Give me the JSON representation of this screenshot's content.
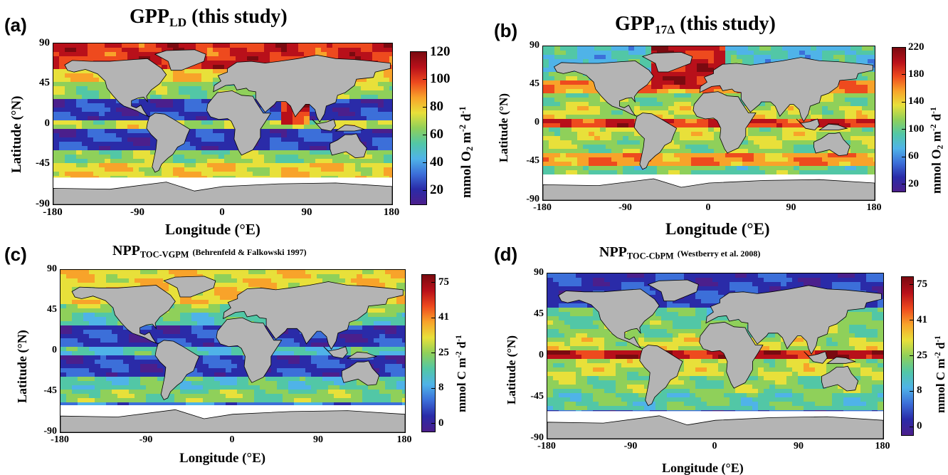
{
  "panels": [
    {
      "id": "a",
      "letter": "(a)",
      "title_main": "GPP",
      "title_sub": "LD",
      "title_note": "(this study)",
      "ylabel": "Latitude (°N)",
      "xlabel": "Longitude  (°E)",
      "lat_ticks": [
        "90",
        "45",
        "0",
        "-45",
        "-90"
      ],
      "lon_ticks": [
        "-180",
        "-90",
        "0",
        "90",
        "180"
      ],
      "colorbar": {
        "label_pre": "mmol O",
        "label_sub": "2",
        "label_mid": " m",
        "label_sup1": "-2",
        "label_post": " d",
        "label_sup2": "-1",
        "ticks": [
          "120",
          "100",
          "80",
          "60",
          "40",
          "20"
        ],
        "range": [
          10,
          120
        ]
      }
    },
    {
      "id": "b",
      "letter": "(b)",
      "title_main": "GPP",
      "title_sub": "17Δ",
      "title_note": "(this study)",
      "ylabel": "Latitude (°N)",
      "xlabel": "Longitude  (°E)",
      "lat_ticks": [
        "90",
        "45",
        "0",
        "-45",
        "-90"
      ],
      "lon_ticks": [
        "-180",
        "-90",
        "0",
        "90",
        "180"
      ],
      "colorbar": {
        "label_pre": "mmol O",
        "label_sub": "2",
        "label_mid": " m",
        "label_sup1": "-2",
        "label_post": " d",
        "label_sup2": "-1",
        "ticks": [
          "220",
          "180",
          "140",
          "100",
          "60",
          "20"
        ],
        "range": [
          10,
          220
        ]
      }
    },
    {
      "id": "c",
      "letter": "(c)",
      "title_main": "NPP",
      "title_sub": "TOC-VGPM",
      "title_note": "(Behrenfeld & Falkowski 1997)",
      "ylabel": "Latitude (°N)",
      "xlabel": "Longitude  (°E)",
      "lat_ticks": [
        "90",
        "45",
        "0",
        "-45",
        "-90"
      ],
      "lon_ticks": [
        "-180",
        "-90",
        "0",
        "90",
        "180"
      ],
      "colorbar": {
        "label_pre": "mmol C m",
        "label_sub": "",
        "label_mid": "",
        "label_sup1": "-2",
        "label_post": " d",
        "label_sup2": "-1",
        "ticks": [
          "75",
          "41",
          "25",
          "8",
          "0"
        ],
        "range": [
          0,
          90
        ]
      }
    },
    {
      "id": "d",
      "letter": "(d)",
      "title_main": "NPP",
      "title_sub": "TOC-CbPM",
      "title_note": "(Westberry et al. 2008)",
      "ylabel": "Latitude (°N)",
      "xlabel": "Longitude  (°E)",
      "lat_ticks": [
        "90",
        "45",
        "0",
        "-45",
        "-90"
      ],
      "lon_ticks": [
        "-180",
        "-90",
        "0",
        "90",
        "180"
      ],
      "colorbar": {
        "label_pre": "mmol C m",
        "label_sub": "",
        "label_mid": "",
        "label_sup1": "-2",
        "label_post": " d",
        "label_sup2": "-1",
        "ticks": [
          "75",
          "41",
          "25",
          "8",
          "0"
        ],
        "range": [
          0,
          90
        ]
      }
    }
  ],
  "colors": {
    "land": "#b4b4b4",
    "polar_ice": "#ffffff",
    "scale": [
      "#4b1f8c",
      "#2a2ba8",
      "#3c6fd9",
      "#4fb3e8",
      "#52c7a6",
      "#8fd05a",
      "#e8e03a",
      "#f8a32a",
      "#ee4a1e",
      "#b8101a",
      "#7a0a10"
    ]
  }
}
